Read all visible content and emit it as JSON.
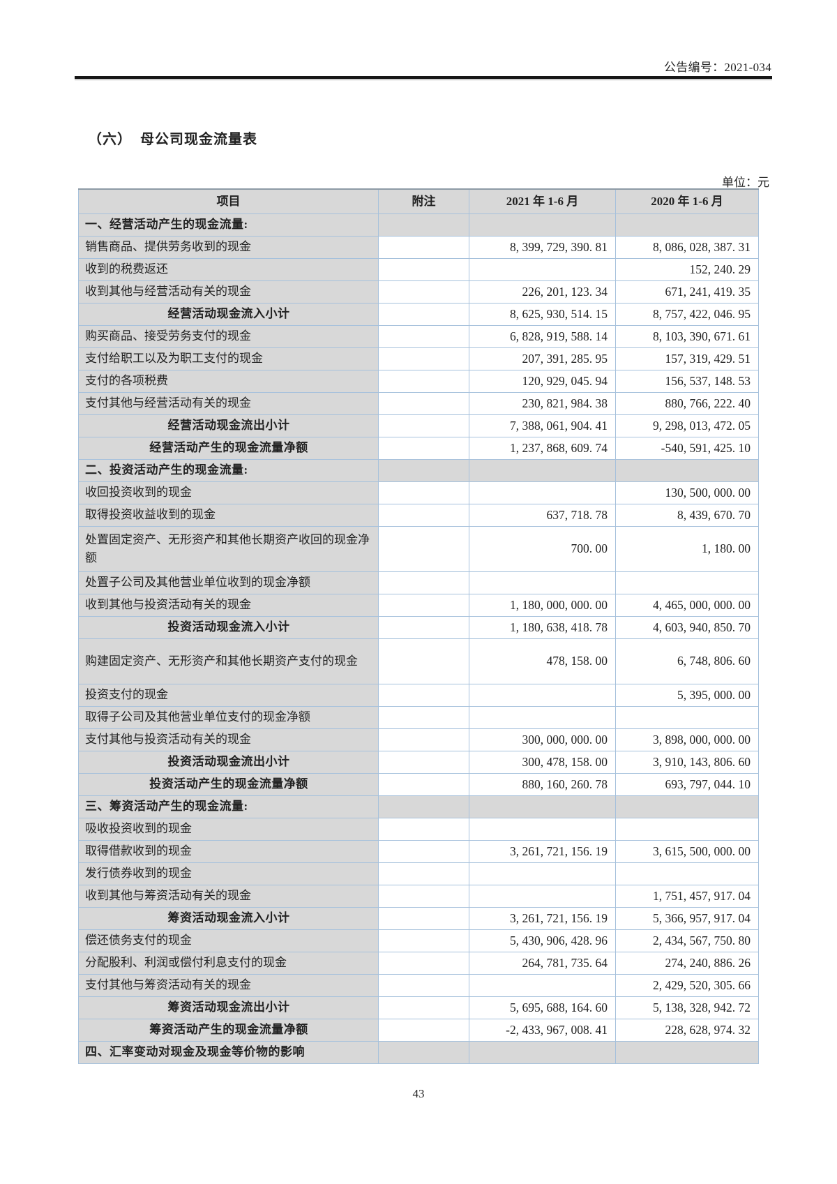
{
  "page": {
    "doc_number": "公告编号：2021-034",
    "title": "（六）  母公司现金流量表",
    "unit_label": "单位：元",
    "page_number": "43"
  },
  "table": {
    "headers": [
      "项目",
      "附注",
      "2021 年 1-6 月",
      "2020 年 1-6 月"
    ],
    "rows": [
      {
        "style": "section",
        "item": "一、经营活动产生的现金流量:",
        "note": "",
        "v2021": "",
        "v2020": ""
      },
      {
        "style": "item",
        "item": "销售商品、提供劳务收到的现金",
        "note": "",
        "v2021": "8, 399, 729, 390. 81",
        "v2020": "8, 086, 028, 387. 31"
      },
      {
        "style": "item",
        "item": "收到的税费返还",
        "note": "",
        "v2021": "",
        "v2020": "152, 240. 29"
      },
      {
        "style": "item",
        "item": "收到其他与经营活动有关的现金",
        "note": "",
        "v2021": "226, 201, 123. 34",
        "v2020": "671, 241, 419. 35"
      },
      {
        "style": "subtotal",
        "item": "经营活动现金流入小计",
        "note": "",
        "v2021": "8, 625, 930, 514. 15",
        "v2020": "8, 757, 422, 046. 95"
      },
      {
        "style": "item",
        "item": "购买商品、接受劳务支付的现金",
        "note": "",
        "v2021": "6, 828, 919, 588. 14",
        "v2020": "8, 103, 390, 671. 61"
      },
      {
        "style": "item",
        "item": "支付给职工以及为职工支付的现金",
        "note": "",
        "v2021": "207, 391, 285. 95",
        "v2020": "157, 319, 429. 51"
      },
      {
        "style": "item",
        "item": "支付的各项税费",
        "note": "",
        "v2021": "120, 929, 045. 94",
        "v2020": "156, 537, 148. 53"
      },
      {
        "style": "item",
        "item": "支付其他与经营活动有关的现金",
        "note": "",
        "v2021": "230, 821, 984. 38",
        "v2020": "880, 766, 222. 40"
      },
      {
        "style": "subtotal",
        "item": "经营活动现金流出小计",
        "note": "",
        "v2021": "7, 388, 061, 904. 41",
        "v2020": "9, 298, 013, 472. 05"
      },
      {
        "style": "subtotal",
        "item": "经营活动产生的现金流量净额",
        "note": "",
        "v2021": "1, 237, 868, 609. 74",
        "v2020": "-540, 591, 425. 10"
      },
      {
        "style": "section",
        "item": "二、投资活动产生的现金流量:",
        "note": "",
        "v2021": "",
        "v2020": ""
      },
      {
        "style": "item",
        "item": "收回投资收到的现金",
        "note": "",
        "v2021": "",
        "v2020": "130, 500, 000. 00"
      },
      {
        "style": "item",
        "item": "取得投资收益收到的现金",
        "note": "",
        "v2021": "637, 718. 78",
        "v2020": "8, 439, 670. 70"
      },
      {
        "style": "item",
        "tall": true,
        "item_note": "two-line row",
        "item2": "",
        "item_full": "",
        "item": "处置固定资产、无形资产和其他长期资产收回的现金净额",
        "note": "",
        "v2021": "700. 00",
        "v2020": "1, 180. 00"
      },
      {
        "style": "item",
        "item": "处置子公司及其他营业单位收到的现金净额",
        "note": "",
        "v2021": "",
        "v2020": ""
      },
      {
        "style": "item",
        "item": "收到其他与投资活动有关的现金",
        "note": "",
        "v2021": "1, 180, 000, 000. 00",
        "v2020": "4, 465, 000, 000. 00"
      },
      {
        "style": "subtotal",
        "item": "投资活动现金流入小计",
        "note": "",
        "v2021": "1, 180, 638, 418. 78",
        "v2020": "4, 603, 940, 850. 70"
      },
      {
        "style": "item",
        "tall": true,
        "item": "购建固定资产、无形资产和其他长期资产支付的现金",
        "note": "",
        "v2021": "478, 158. 00",
        "v2020": "6, 748, 806. 60"
      },
      {
        "style": "item",
        "item": "投资支付的现金",
        "note": "",
        "v2021": "",
        "v2020": "5, 395, 000. 00"
      },
      {
        "style": "item",
        "item": "取得子公司及其他营业单位支付的现金净额",
        "note": "",
        "v2021": "",
        "v2020": ""
      },
      {
        "style": "item",
        "item": "支付其他与投资活动有关的现金",
        "note": "",
        "v2021": "300, 000, 000. 00",
        "v2020": "3, 898, 000, 000. 00"
      },
      {
        "style": "subtotal",
        "item": "投资活动现金流出小计",
        "note": "",
        "v2021": "300, 478, 158. 00",
        "v2020": "3, 910, 143, 806. 60"
      },
      {
        "style": "subtotal",
        "item": "投资活动产生的现金流量净额",
        "note": "",
        "v2021": "880, 160, 260. 78",
        "v2020": "693, 797, 044. 10"
      },
      {
        "style": "section",
        "item": "三、筹资活动产生的现金流量:",
        "note": "",
        "v2021": "",
        "v2020": ""
      },
      {
        "style": "item",
        "item": "吸收投资收到的现金",
        "note": "",
        "v2021": "",
        "v2020": ""
      },
      {
        "style": "item",
        "item": "取得借款收到的现金",
        "note": "",
        "v2021": "3, 261, 721, 156. 19",
        "v2020": "3, 615, 500, 000. 00"
      },
      {
        "style": "item",
        "item": "发行债券收到的现金",
        "note": "",
        "v2021": "",
        "v2020": ""
      },
      {
        "style": "item",
        "item": "收到其他与筹资活动有关的现金",
        "note": "",
        "v2021": "",
        "v2020": "1, 751, 457, 917. 04"
      },
      {
        "style": "subtotal",
        "item": "筹资活动现金流入小计",
        "note": "",
        "v2021": "3, 261, 721, 156. 19",
        "v2020": "5, 366, 957, 917. 04"
      },
      {
        "style": "item",
        "item": "偿还债务支付的现金",
        "note": "",
        "v2021": "5, 430, 906, 428. 96",
        "v2020": "2, 434, 567, 750. 80"
      },
      {
        "style": "item",
        "item": "分配股利、利润或偿付利息支付的现金",
        "note": "",
        "v2021": "264, 781, 735. 64",
        "v2020": "274, 240, 886. 26"
      },
      {
        "style": "item",
        "item": "支付其他与筹资活动有关的现金",
        "note": "",
        "v2021": "",
        "v2020": "2, 429, 520, 305. 66"
      },
      {
        "style": "subtotal",
        "item": "筹资活动现金流出小计",
        "note": "",
        "v2021": "5, 695, 688, 164. 60",
        "v2020": "5, 138, 328, 942. 72"
      },
      {
        "style": "subtotal",
        "item": "筹资活动产生的现金流量净额",
        "note": "",
        "v2021": "-2, 433, 967, 008. 41",
        "v2020": "228, 628, 974. 32"
      },
      {
        "style": "section",
        "item": "四、汇率变动对现金及现金等价物的影响",
        "note": "",
        "v2021": "",
        "v2020": ""
      }
    ]
  }
}
